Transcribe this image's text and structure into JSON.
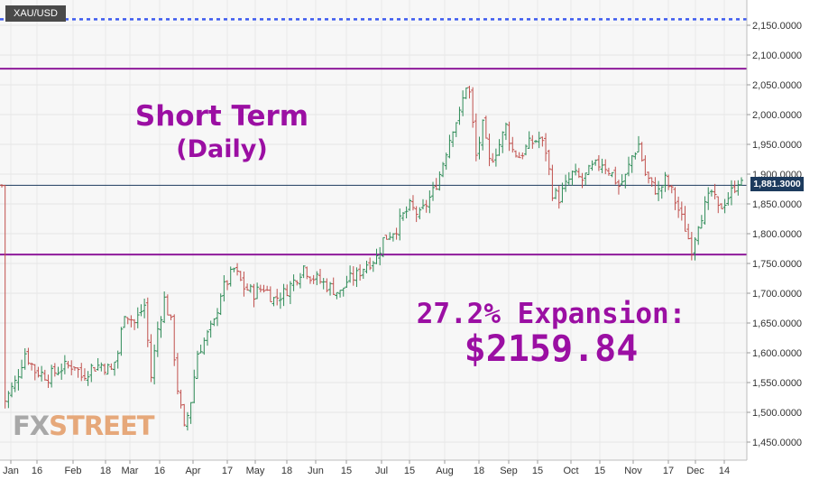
{
  "symbol": "XAU/USD",
  "current_price_label": "1,881.3000",
  "annotations": {
    "title_line1": "Short Term",
    "title_line2": "(Daily)",
    "expansion_line1": "27.2% Expansion:",
    "expansion_line2": "$2159.84"
  },
  "logo": {
    "part1": "FX",
    "part2": "STREET"
  },
  "colors": {
    "annotation": "#9b0fa3",
    "level_line": "#8e1b9b",
    "target_line": "#3d5bf0",
    "candle_up": "#2e8b57",
    "candle_down": "#c0504d",
    "price_line": "#1d3b5e"
  },
  "chart_data": {
    "type": "candlestick",
    "y_ticks": [
      "2,150.0000",
      "2,100.0000",
      "2,050.0000",
      "2,000.0000",
      "1,950.0000",
      "1,900.0000",
      "1,850.0000",
      "1,800.0000",
      "1,750.0000",
      "1,700.0000",
      "1,650.0000",
      "1,600.0000",
      "1,550.0000",
      "1,500.0000",
      "1,450.0000"
    ],
    "x_ticks": [
      "Jan",
      "16",
      "Feb",
      "18",
      "Mar",
      "16",
      "Apr",
      "17",
      "May",
      "18",
      "Jun",
      "15",
      "Jul",
      "15",
      "Aug",
      "18",
      "Sep",
      "15",
      "Oct",
      "15",
      "Nov",
      "17",
      "Dec",
      "14"
    ],
    "ylim": [
      1440,
      2175
    ],
    "horizontal_levels": [
      {
        "value": 2160,
        "style": "dotted"
      },
      {
        "value": 2077,
        "style": "solid"
      },
      {
        "value": 1765,
        "style": "solid"
      }
    ],
    "current_price": 1881.3,
    "close_path": [
      [
        1,
        1520
      ],
      [
        4,
        1550
      ],
      [
        7,
        1600
      ],
      [
        10,
        1570
      ],
      [
        14,
        1560
      ],
      [
        18,
        1575
      ],
      [
        22,
        1580
      ],
      [
        24,
        1560
      ],
      [
        27,
        1575
      ],
      [
        30,
        1580
      ],
      [
        33,
        1570
      ],
      [
        35,
        1600
      ],
      [
        37,
        1670
      ],
      [
        40,
        1650
      ],
      [
        43,
        1680
      ],
      [
        45,
        1560
      ],
      [
        47,
        1640
      ],
      [
        49,
        1690
      ],
      [
        51,
        1650
      ],
      [
        53,
        1540
      ],
      [
        55,
        1470
      ],
      [
        57,
        1520
      ],
      [
        59,
        1600
      ],
      [
        61,
        1620
      ],
      [
        64,
        1650
      ],
      [
        66,
        1700
      ],
      [
        68,
        1720
      ],
      [
        70,
        1740
      ],
      [
        73,
        1710
      ],
      [
        76,
        1700
      ],
      [
        79,
        1710
      ],
      [
        82,
        1690
      ],
      [
        85,
        1700
      ],
      [
        88,
        1720
      ],
      [
        91,
        1745
      ],
      [
        93,
        1730
      ],
      [
        96,
        1720
      ],
      [
        99,
        1710
      ],
      [
        102,
        1700
      ],
      [
        104,
        1720
      ],
      [
        107,
        1730
      ],
      [
        110,
        1750
      ],
      [
        113,
        1760
      ],
      [
        115,
        1790
      ],
      [
        117,
        1800
      ],
      [
        119,
        1810
      ],
      [
        121,
        1830
      ],
      [
        123,
        1845
      ],
      [
        126,
        1830
      ],
      [
        128,
        1850
      ],
      [
        130,
        1870
      ],
      [
        132,
        1900
      ],
      [
        134,
        1940
      ],
      [
        136,
        1980
      ],
      [
        138,
        2000
      ],
      [
        140,
        2050
      ],
      [
        141,
        2035
      ],
      [
        143,
        1930
      ],
      [
        145,
        1980
      ],
      [
        147,
        1920
      ],
      [
        150,
        1950
      ],
      [
        152,
        1980
      ],
      [
        154,
        1940
      ],
      [
        156,
        1930
      ],
      [
        159,
        1950
      ],
      [
        162,
        1960
      ],
      [
        164,
        1940
      ],
      [
        166,
        1870
      ],
      [
        168,
        1860
      ],
      [
        170,
        1880
      ],
      [
        172,
        1900
      ],
      [
        175,
        1890
      ],
      [
        178,
        1910
      ],
      [
        181,
        1920
      ],
      [
        184,
        1900
      ],
      [
        186,
        1880
      ],
      [
        188,
        1895
      ],
      [
        190,
        1930
      ],
      [
        192,
        1950
      ],
      [
        194,
        1900
      ],
      [
        196,
        1880
      ],
      [
        198,
        1870
      ],
      [
        200,
        1890
      ],
      [
        202,
        1870
      ],
      [
        204,
        1840
      ],
      [
        206,
        1810
      ],
      [
        208,
        1775
      ],
      [
        210,
        1820
      ],
      [
        212,
        1845
      ],
      [
        214,
        1870
      ],
      [
        216,
        1840
      ],
      [
        218,
        1855
      ],
      [
        220,
        1870
      ],
      [
        222,
        1890
      ],
      [
        223,
        1881
      ]
    ]
  }
}
